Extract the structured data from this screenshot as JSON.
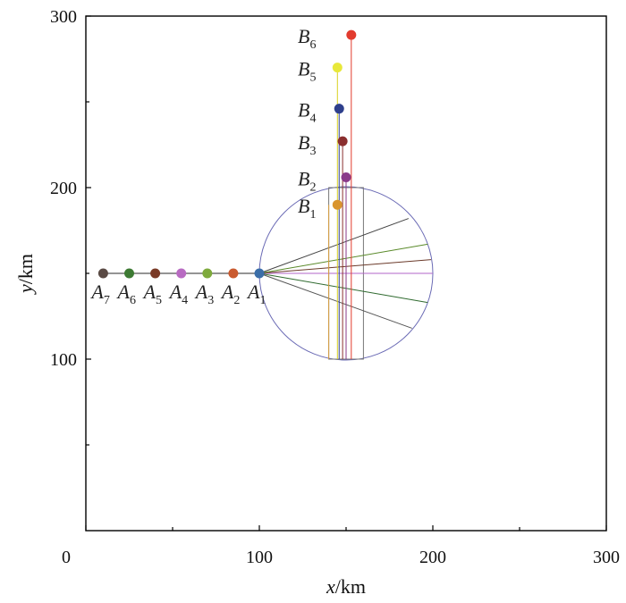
{
  "chart_data": {
    "type": "scatter",
    "xlabel": {
      "var": "x",
      "unit": "/km"
    },
    "ylabel": {
      "var": "y",
      "unit": "/km"
    },
    "xlim": [
      0,
      300
    ],
    "ylim": [
      0,
      300
    ],
    "x_ticks": [
      0,
      100,
      200,
      300
    ],
    "y_ticks": [
      100,
      200,
      300
    ],
    "grid": false,
    "circle": {
      "center": [
        150,
        150
      ],
      "radius": 50,
      "color": "#6b6bb5"
    },
    "rectangles": [
      {
        "x0": 140,
        "x1": 150,
        "y0": 100,
        "y1": 200,
        "color": "#777777"
      },
      {
        "x0": 150,
        "x1": 160,
        "y0": 100,
        "y1": 200,
        "color": "#777777"
      }
    ],
    "baseline": {
      "y": 150,
      "x0": 10,
      "x1": 100,
      "color": "#555555"
    },
    "points_A": [
      {
        "name": "A",
        "sub": "1",
        "x": 100,
        "y": 150,
        "color": "#3b6ea8"
      },
      {
        "name": "A",
        "sub": "2",
        "x": 85,
        "y": 150,
        "color": "#c95a2f"
      },
      {
        "name": "A",
        "sub": "3",
        "x": 70,
        "y": 150,
        "color": "#7eaa3c"
      },
      {
        "name": "A",
        "sub": "4",
        "x": 55,
        "y": 150,
        "color": "#b86bc2"
      },
      {
        "name": "A",
        "sub": "5",
        "x": 40,
        "y": 150,
        "color": "#7a3a26"
      },
      {
        "name": "A",
        "sub": "6",
        "x": 25,
        "y": 150,
        "color": "#3d7a33"
      },
      {
        "name": "A",
        "sub": "7",
        "x": 10,
        "y": 150,
        "color": "#5a4a44"
      }
    ],
    "points_B": [
      {
        "name": "B",
        "sub": "1",
        "x": 145,
        "y": 190,
        "color": "#d9942e"
      },
      {
        "name": "B",
        "sub": "2",
        "x": 150,
        "y": 206,
        "color": "#8a3a8a"
      },
      {
        "name": "B",
        "sub": "3",
        "x": 148,
        "y": 227,
        "color": "#8a2e2e"
      },
      {
        "name": "B",
        "sub": "4",
        "x": 146,
        "y": 246,
        "color": "#2e3f8c"
      },
      {
        "name": "B",
        "sub": "5",
        "x": 145,
        "y": 270,
        "color": "#e8e83a"
      },
      {
        "name": "B",
        "sub": "6",
        "x": 153,
        "y": 289,
        "color": "#e23b2e"
      }
    ],
    "rays": [
      {
        "x2": 200,
        "y2": 150,
        "color": "#b066c8"
      },
      {
        "x2": 199,
        "y2": 158,
        "color": "#6b3a2a"
      },
      {
        "x2": 197,
        "y2": 167,
        "color": "#5a8a2a"
      },
      {
        "x2": 186,
        "y2": 182,
        "color": "#444444"
      },
      {
        "x2": 197,
        "y2": 133,
        "color": "#2f6a2f"
      },
      {
        "x2": 188,
        "y2": 118,
        "color": "#555555"
      }
    ],
    "verticals": [
      {
        "x": 140,
        "y0": 100,
        "y1": 190,
        "color": "#d9a040"
      },
      {
        "x": 145,
        "y0": 100,
        "y1": 270,
        "color": "#d8d020"
      },
      {
        "x": 146,
        "y0": 100,
        "y1": 246,
        "color": "#2e3f8c"
      },
      {
        "x": 148,
        "y0": 100,
        "y1": 227,
        "color": "#8a2e2e"
      },
      {
        "x": 150,
        "y0": 100,
        "y1": 206,
        "color": "#8a3a8a"
      },
      {
        "x": 153,
        "y0": 100,
        "y1": 289,
        "color": "#e23b2e"
      }
    ]
  }
}
